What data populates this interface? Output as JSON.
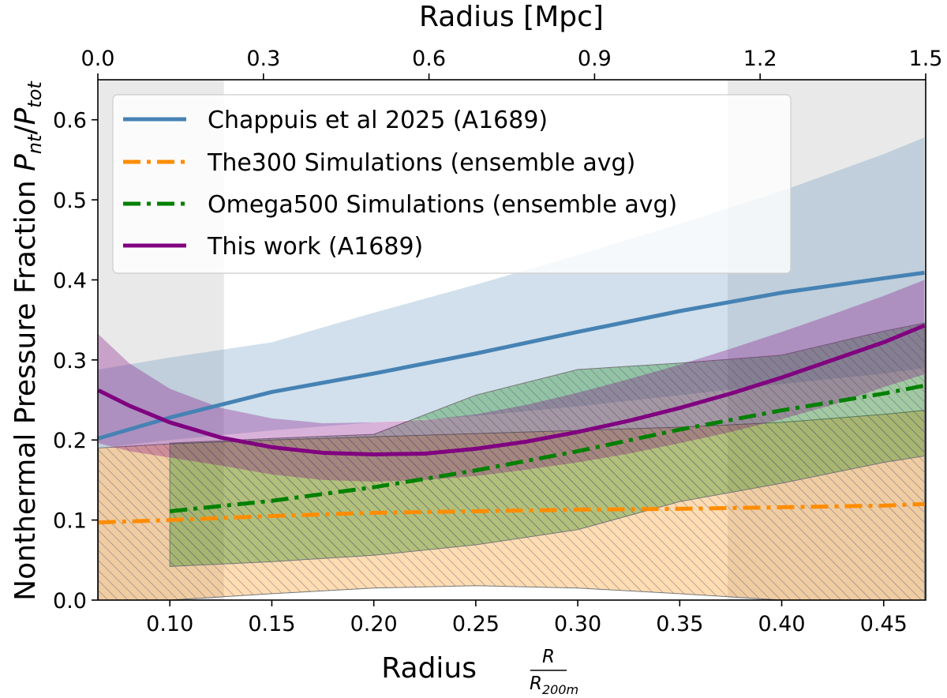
{
  "chart_data": {
    "type": "line",
    "xlabel": "Radius",
    "xlabel_fraction": {
      "numerator": "R",
      "denominator": "R",
      "denominator_subscript": "200m"
    },
    "top_xlabel": "Radius [Mpc]",
    "ylabel": "Nonthermal Pressure Fraction",
    "ylabel_math": {
      "P1": "P",
      "sub1": "nt",
      "slash": "/",
      "P2": "P",
      "sub2": "tot"
    },
    "xlim": [
      0.0647,
      0.4706
    ],
    "ylim": [
      0.0,
      0.65
    ],
    "top_xlim": [
      0.0,
      1.5
    ],
    "xticks": [
      0.1,
      0.15,
      0.2,
      0.25,
      0.3,
      0.35,
      0.4,
      0.45
    ],
    "xtick_labels": [
      "0.10",
      "0.15",
      "0.20",
      "0.25",
      "0.30",
      "0.35",
      "0.40",
      "0.45"
    ],
    "yticks": [
      0.0,
      0.1,
      0.2,
      0.3,
      0.4,
      0.5,
      0.6
    ],
    "ytick_labels": [
      "0.0",
      "0.1",
      "0.2",
      "0.3",
      "0.4",
      "0.5",
      "0.6"
    ],
    "top_xticks": [
      0.0,
      0.3,
      0.6,
      0.9,
      1.2,
      1.5
    ],
    "top_xtick_labels": [
      "0.0",
      "0.3",
      "0.6",
      "0.9",
      "1.2",
      "1.5"
    ],
    "excluded_regions": [
      [
        0.0647,
        0.1265
      ],
      [
        0.3735,
        0.4706
      ]
    ],
    "legend_position": "upper-left",
    "grid": false,
    "series": [
      {
        "name": "Chappuis et al 2025 (A1689)",
        "color": "#4682b4",
        "style": "solid",
        "x": [
          0.065,
          0.1,
          0.15,
          0.2,
          0.25,
          0.3,
          0.35,
          0.4,
          0.45,
          0.47
        ],
        "y": [
          0.202,
          0.228,
          0.26,
          0.283,
          0.308,
          0.335,
          0.361,
          0.384,
          0.402,
          0.409
        ],
        "band_upper": [
          0.288,
          0.303,
          0.322,
          0.359,
          0.394,
          0.431,
          0.47,
          0.511,
          0.557,
          0.578
        ],
        "band_lower": [
          0.19,
          0.2,
          0.212,
          0.222,
          0.23,
          0.242,
          0.256,
          0.27,
          0.283,
          0.29
        ]
      },
      {
        "name": "The300 Simulations (ensemble avg)",
        "color": "#ff8c00",
        "style": "dashdot",
        "x": [
          0.065,
          0.1,
          0.15,
          0.2,
          0.25,
          0.3,
          0.35,
          0.4,
          0.45,
          0.47
        ],
        "y": [
          0.097,
          0.1,
          0.105,
          0.109,
          0.111,
          0.113,
          0.114,
          0.116,
          0.118,
          0.12
        ],
        "band_upper": [
          0.19,
          0.195,
          0.2,
          0.204,
          0.208,
          0.212,
          0.216,
          0.222,
          0.232,
          0.237
        ],
        "band_lower": [
          0.0,
          0.0,
          0.008,
          0.015,
          0.018,
          0.015,
          0.008,
          0.0,
          0.0,
          0.0
        ]
      },
      {
        "name": "Omega500 Simulations (ensemble avg)",
        "color": "#008000",
        "style": "dashdot",
        "x": [
          0.1,
          0.15,
          0.2,
          0.25,
          0.3,
          0.35,
          0.4,
          0.45,
          0.47
        ],
        "y": [
          0.111,
          0.124,
          0.141,
          0.162,
          0.186,
          0.213,
          0.237,
          0.258,
          0.268
        ],
        "band_upper": [
          0.196,
          0.202,
          0.207,
          0.256,
          0.288,
          0.296,
          0.306,
          0.336,
          0.346
        ],
        "band_lower": [
          0.042,
          0.048,
          0.056,
          0.069,
          0.088,
          0.123,
          0.146,
          0.172,
          0.18
        ]
      },
      {
        "name": "This work (A1689)",
        "color": "#800080",
        "style": "solid",
        "x": [
          0.065,
          0.08,
          0.1,
          0.125,
          0.15,
          0.175,
          0.2,
          0.225,
          0.25,
          0.275,
          0.3,
          0.325,
          0.35,
          0.375,
          0.4,
          0.425,
          0.45,
          0.47
        ],
        "y": [
          0.262,
          0.243,
          0.222,
          0.203,
          0.191,
          0.184,
          0.182,
          0.183,
          0.189,
          0.198,
          0.21,
          0.224,
          0.24,
          0.258,
          0.278,
          0.3,
          0.322,
          0.343
        ],
        "band_upper": [
          0.332,
          0.296,
          0.264,
          0.24,
          0.227,
          0.221,
          0.222,
          0.225,
          0.232,
          0.244,
          0.259,
          0.276,
          0.294,
          0.314,
          0.335,
          0.357,
          0.38,
          0.4
        ],
        "band_lower": [
          0.196,
          0.186,
          0.178,
          0.168,
          0.157,
          0.15,
          0.148,
          0.15,
          0.155,
          0.163,
          0.172,
          0.183,
          0.196,
          0.21,
          0.226,
          0.244,
          0.266,
          0.282
        ]
      }
    ]
  }
}
